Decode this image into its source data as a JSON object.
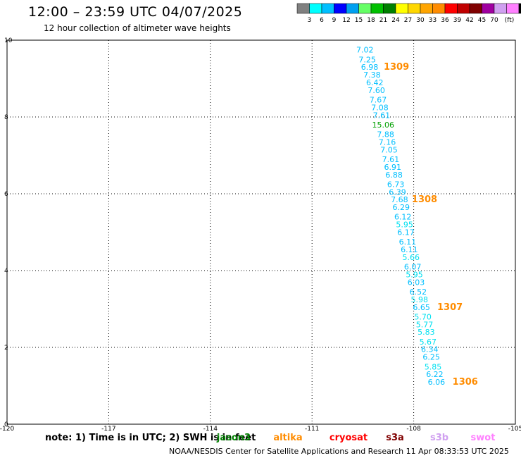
{
  "header": {
    "title": "12:00 – 23:59 UTC 04/07/2025",
    "subtitle": "12 hour collection of altimeter wave heights"
  },
  "legend": {
    "colors": [
      "#808080",
      "#00ffff",
      "#00bfff",
      "#0000ff",
      "#00a0f0",
      "#66ff66",
      "#00c000",
      "#008000",
      "#ffff00",
      "#ffd700",
      "#ffa500",
      "#ff8c00",
      "#ff0000",
      "#c00000",
      "#800000",
      "#a000a0",
      "#d0a0f0",
      "#ff80ff",
      "#000000"
    ],
    "labels": [
      "3",
      "6",
      "9",
      "12",
      "15",
      "18",
      "21",
      "24",
      "27",
      "30",
      "33",
      "36",
      "39",
      "42",
      "45",
      "70"
    ],
    "unit": "(ft)"
  },
  "chart_data": {
    "type": "scatter",
    "xlim": [
      -120,
      -105
    ],
    "ylim": [
      0,
      10
    ],
    "x_ticks": [
      "-120",
      "-117",
      "-114",
      "-111",
      "-108",
      "-105"
    ],
    "y_ticks": [
      "0",
      "2",
      "4",
      "6",
      "8",
      "10"
    ],
    "grid": true,
    "series": [
      {
        "values": [
          {
            "x": -109.44,
            "y": 9.75,
            "v": "7.02"
          },
          {
            "x": -109.37,
            "y": 9.5,
            "v": "7.25"
          },
          {
            "x": -109.3,
            "y": 9.3,
            "v": "6.98"
          },
          {
            "x": -109.23,
            "y": 9.1,
            "v": "7.38"
          },
          {
            "x": -109.15,
            "y": 8.9,
            "v": "6.42"
          },
          {
            "x": -109.1,
            "y": 8.7,
            "v": "7.60"
          },
          {
            "x": -109.05,
            "y": 8.45,
            "v": "7.67"
          },
          {
            "x": -109.0,
            "y": 8.25,
            "v": "7.08"
          },
          {
            "x": -108.95,
            "y": 8.05,
            "v": "7.61"
          },
          {
            "x": -108.9,
            "y": 7.8,
            "v": "15.06"
          },
          {
            "x": -108.83,
            "y": 7.55,
            "v": "7.88"
          },
          {
            "x": -108.78,
            "y": 7.35,
            "v": "7.16"
          },
          {
            "x": -108.73,
            "y": 7.15,
            "v": "7.05"
          },
          {
            "x": -108.68,
            "y": 6.9,
            "v": "7.61"
          },
          {
            "x": -108.62,
            "y": 6.7,
            "v": "6.91"
          },
          {
            "x": -108.58,
            "y": 6.5,
            "v": "6.88"
          },
          {
            "x": -108.53,
            "y": 6.25,
            "v": "6.73"
          },
          {
            "x": -108.48,
            "y": 6.05,
            "v": "6.39"
          },
          {
            "x": -108.42,
            "y": 5.85,
            "v": "7.68"
          },
          {
            "x": -108.37,
            "y": 5.65,
            "v": "6.29"
          },
          {
            "x": -108.32,
            "y": 5.4,
            "v": "6.12"
          },
          {
            "x": -108.27,
            "y": 5.2,
            "v": "5.95"
          },
          {
            "x": -108.23,
            "y": 5.0,
            "v": "6.17"
          },
          {
            "x": -108.18,
            "y": 4.75,
            "v": "6.11"
          },
          {
            "x": -108.13,
            "y": 4.55,
            "v": "6.11"
          },
          {
            "x": -108.08,
            "y": 4.35,
            "v": "5.66"
          },
          {
            "x": -108.03,
            "y": 4.1,
            "v": "6.07"
          },
          {
            "x": -107.98,
            "y": 3.9,
            "v": "5.95"
          },
          {
            "x": -107.93,
            "y": 3.7,
            "v": "6.03"
          },
          {
            "x": -107.87,
            "y": 3.45,
            "v": "6.52"
          },
          {
            "x": -107.83,
            "y": 3.25,
            "v": "5.98"
          },
          {
            "x": -107.77,
            "y": 3.05,
            "v": "6.65"
          },
          {
            "x": -107.73,
            "y": 2.8,
            "v": "5.70"
          },
          {
            "x": -107.68,
            "y": 2.6,
            "v": "5.77"
          },
          {
            "x": -107.63,
            "y": 2.4,
            "v": "5.83"
          },
          {
            "x": -107.58,
            "y": 2.15,
            "v": "5.67"
          },
          {
            "x": -107.53,
            "y": 1.95,
            "v": "6.34"
          },
          {
            "x": -107.48,
            "y": 1.75,
            "v": "6.25"
          },
          {
            "x": -107.43,
            "y": 1.5,
            "v": "5.85"
          },
          {
            "x": -107.38,
            "y": 1.3,
            "v": "6.22"
          },
          {
            "x": -107.33,
            "y": 1.1,
            "v": "6.06"
          }
        ]
      }
    ],
    "annotations": [
      {
        "x": -108.51,
        "y": 9.3,
        "text": "1309",
        "color": "#ff8c00"
      },
      {
        "x": -107.68,
        "y": 5.85,
        "text": "1308",
        "color": "#ff8c00"
      },
      {
        "x": -106.93,
        "y": 3.05,
        "text": "1307",
        "color": "#ff8c00"
      },
      {
        "x": -106.48,
        "y": 1.1,
        "text": "1306",
        "color": "#ff8c00"
      }
    ]
  },
  "notes": {
    "text": "note: 1) Time is in UTC; 2) SWH is in feet",
    "satellites": [
      {
        "name": "jason3",
        "color": "#008000"
      },
      {
        "name": "altika",
        "color": "#ff8c00"
      },
      {
        "name": "cryosat",
        "color": "#ff0000"
      },
      {
        "name": "s3a",
        "color": "#800000"
      },
      {
        "name": "s3b",
        "color": "#d0a0f0"
      },
      {
        "name": "swot",
        "color": "#ff80ff"
      }
    ]
  },
  "footer": "NOAA/NESDIS Center for Satellite Applications and Research    11 Apr 08:33:53 UTC 2025"
}
